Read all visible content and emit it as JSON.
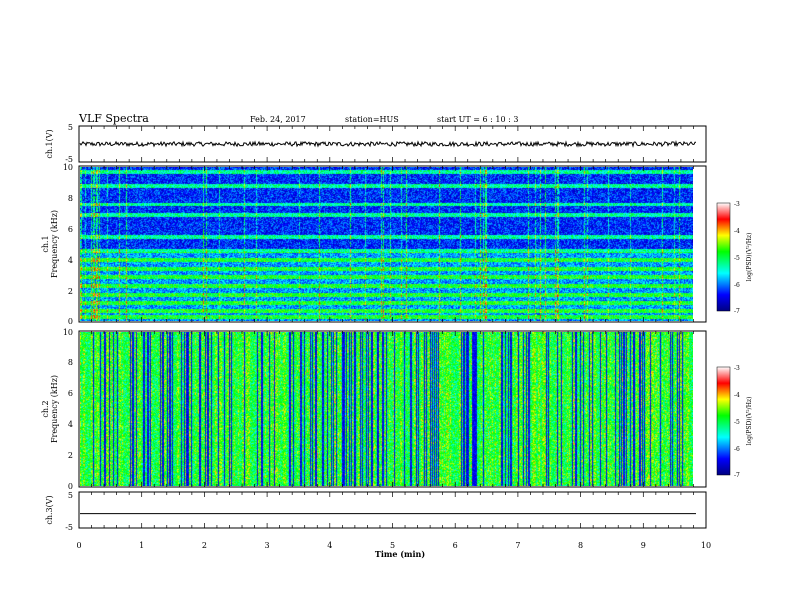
{
  "header": {
    "title": "VLF Spectra",
    "date": "Feb. 24, 2017",
    "station": "station=HUS",
    "start": "start  UT =   6  : 10 : 3"
  },
  "chart_data": [
    {
      "type": "line",
      "name": "ch1-waveform",
      "ylabel": "ch.1(V)",
      "ylim": [
        -5,
        5
      ],
      "yticks": [
        "5",
        "-5"
      ],
      "xlim": [
        0,
        10
      ],
      "trace": {
        "level": 0.0,
        "amplitude": 0.6
      }
    },
    {
      "type": "heatmap",
      "name": "ch1-spectrogram",
      "ylabel": "ch.1\nFrequency (kHz)",
      "ylim": [
        0,
        10
      ],
      "yticks": [
        "0",
        "2",
        "4",
        "6",
        "8",
        "10"
      ],
      "xlim": [
        0,
        9.85
      ],
      "colorbar": {
        "label": "log(PSD)(V²/Hz)",
        "range": [
          -7,
          -3
        ],
        "ticks": [
          "-3",
          "-4",
          "-5",
          "-6",
          "-7"
        ]
      },
      "background_level": -6.3,
      "bands_khz": [
        0.3,
        0.7,
        1.2,
        1.7,
        2.3,
        2.9,
        3.4,
        4.0,
        4.6,
        5.5,
        6.9,
        7.6,
        8.8,
        9.7
      ],
      "band_level": -5.3
    },
    {
      "type": "heatmap",
      "name": "ch2-spectrogram",
      "ylabel": "ch.2\nFrequency (kHz)",
      "ylim": [
        0,
        10
      ],
      "yticks": [
        "0",
        "2",
        "4",
        "6",
        "8",
        "10"
      ],
      "xlim": [
        0,
        9.85
      ],
      "colorbar": {
        "label": "log(PSD)(V²/Hz)",
        "range": [
          -7,
          -3
        ],
        "ticks": [
          "-3",
          "-4",
          "-5",
          "-6",
          "-7"
        ]
      },
      "background_level": -5.2,
      "band_level": -4.9
    },
    {
      "type": "line",
      "name": "ch3-waveform",
      "ylabel": "ch.3(V)",
      "ylim": [
        -5,
        5
      ],
      "yticks": [
        "5",
        "-5"
      ],
      "xlim": [
        0,
        10
      ],
      "trace": {
        "level": -1.0,
        "amplitude": 0
      }
    }
  ],
  "xaxis": {
    "label": "Time (min)",
    "ticks": [
      "0",
      "1",
      "2",
      "3",
      "4",
      "5",
      "6",
      "7",
      "8",
      "9",
      "10"
    ]
  }
}
